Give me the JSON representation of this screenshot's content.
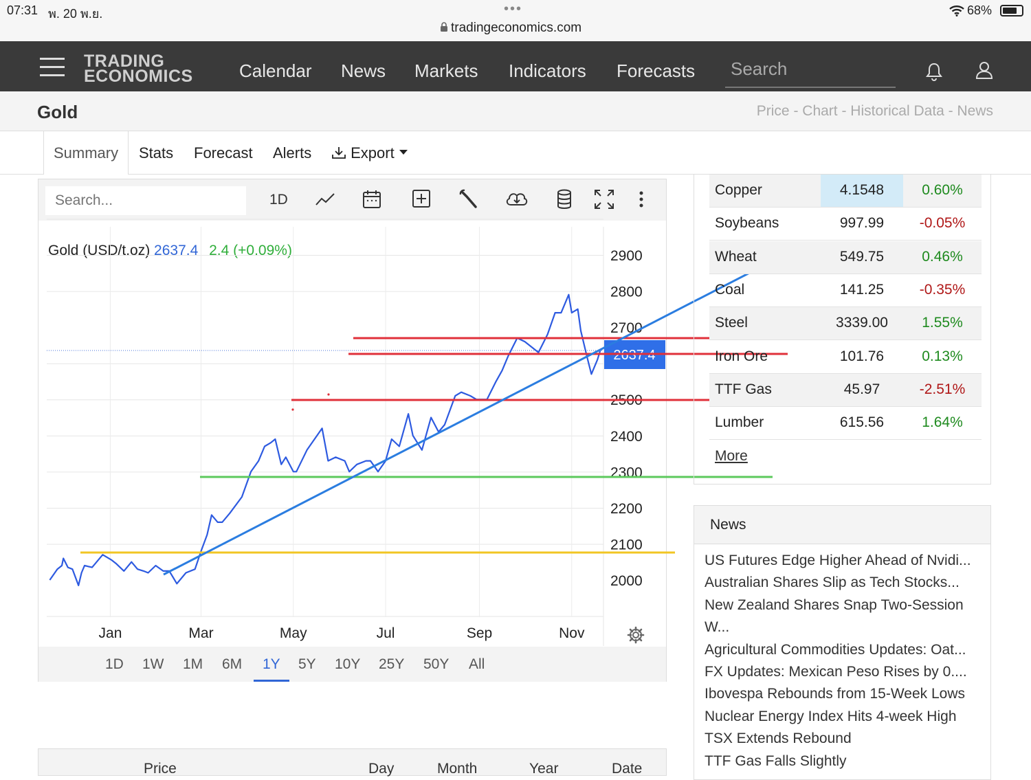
{
  "status_bar": {
    "time": "07:31",
    "date": "พ. 20 พ.ย.",
    "url": "tradingeconomics.com",
    "battery": "68%"
  },
  "nav": {
    "logo_line1": "TRADING",
    "logo_line2": "ECONOMICS",
    "links": [
      "Calendar",
      "News",
      "Markets",
      "Indicators",
      "Forecasts"
    ],
    "search_placeholder": "Search"
  },
  "page": {
    "title": "Gold",
    "breadcrumbs": "Price - Chart - Historical Data - News"
  },
  "tabs": [
    "Summary",
    "Stats",
    "Forecast",
    "Alerts",
    "Export"
  ],
  "active_tab": "Summary",
  "chart_toolbar": {
    "search_placeholder": "Search...",
    "interval": "1D",
    "icons": [
      "line-chart-icon",
      "calendar-icon",
      "add-box-icon",
      "wrench-icon",
      "cloud-download-icon",
      "database-icon",
      "fullscreen-icon",
      "more-vertical-icon"
    ]
  },
  "chart_data": {
    "type": "line",
    "legend_name": "Gold (USD/t.oz)",
    "legend_value": "2637.4",
    "legend_change": "2.4 (+0.09%)",
    "last_price_label": "2637.4",
    "x_ticks": [
      "Jan",
      "Mar",
      "May",
      "Jul",
      "Sep",
      "Nov"
    ],
    "y_ticks": [
      "2900",
      "2800",
      "2700",
      "2500",
      "2400",
      "2300",
      "2200",
      "2100",
      "2000"
    ],
    "y_range": [
      1930,
      2960
    ],
    "series": [
      {
        "name": "Gold (USD/t.oz)",
        "color": "#2d5ae0",
        "points": [
          [
            "2023-11-22",
            2000
          ],
          [
            "2023-11-27",
            2030
          ],
          [
            "2023-11-30",
            2040
          ],
          [
            "2023-12-01",
            2060
          ],
          [
            "2023-12-04",
            2035
          ],
          [
            "2023-12-07",
            2030
          ],
          [
            "2023-12-11",
            1985
          ],
          [
            "2023-12-13",
            2020
          ],
          [
            "2023-12-15",
            2040
          ],
          [
            "2023-12-20",
            2035
          ],
          [
            "2023-12-27",
            2070
          ],
          [
            "2024-01-02",
            2055
          ],
          [
            "2024-01-05",
            2045
          ],
          [
            "2024-01-10",
            2025
          ],
          [
            "2024-01-15",
            2050
          ],
          [
            "2024-01-19",
            2030
          ],
          [
            "2024-01-23",
            2025
          ],
          [
            "2024-01-26",
            2020
          ],
          [
            "2024-01-31",
            2040
          ],
          [
            "2024-02-05",
            2025
          ],
          [
            "2024-02-09",
            2025
          ],
          [
            "2024-02-14",
            1990
          ],
          [
            "2024-02-20",
            2020
          ],
          [
            "2024-02-26",
            2030
          ],
          [
            "2024-03-01",
            2080
          ],
          [
            "2024-03-05",
            2125
          ],
          [
            "2024-03-08",
            2180
          ],
          [
            "2024-03-12",
            2160
          ],
          [
            "2024-03-15",
            2160
          ],
          [
            "2024-03-20",
            2185
          ],
          [
            "2024-03-28",
            2230
          ],
          [
            "2024-04-03",
            2300
          ],
          [
            "2024-04-08",
            2330
          ],
          [
            "2024-04-12",
            2370
          ],
          [
            "2024-04-16",
            2380
          ],
          [
            "2024-04-19",
            2390
          ],
          [
            "2024-04-23",
            2320
          ],
          [
            "2024-04-26",
            2340
          ],
          [
            "2024-05-01",
            2300
          ],
          [
            "2024-05-03",
            2300
          ],
          [
            "2024-05-10",
            2360
          ],
          [
            "2024-05-15",
            2390
          ],
          [
            "2024-05-20",
            2420
          ],
          [
            "2024-05-24",
            2330
          ],
          [
            "2024-05-29",
            2340
          ],
          [
            "2024-06-04",
            2330
          ],
          [
            "2024-06-07",
            2300
          ],
          [
            "2024-06-12",
            2320
          ],
          [
            "2024-06-18",
            2330
          ],
          [
            "2024-06-21",
            2330
          ],
          [
            "2024-06-26",
            2300
          ],
          [
            "2024-07-01",
            2330
          ],
          [
            "2024-07-05",
            2390
          ],
          [
            "2024-07-10",
            2370
          ],
          [
            "2024-07-16",
            2460
          ],
          [
            "2024-07-19",
            2400
          ],
          [
            "2024-07-25",
            2360
          ],
          [
            "2024-07-31",
            2450
          ],
          [
            "2024-08-05",
            2410
          ],
          [
            "2024-08-09",
            2430
          ],
          [
            "2024-08-16",
            2510
          ],
          [
            "2024-08-20",
            2520
          ],
          [
            "2024-08-26",
            2510
          ],
          [
            "2024-08-30",
            2500
          ],
          [
            "2024-09-06",
            2500
          ],
          [
            "2024-09-12",
            2550
          ],
          [
            "2024-09-16",
            2580
          ],
          [
            "2024-09-20",
            2620
          ],
          [
            "2024-09-26",
            2670
          ],
          [
            "2024-10-01",
            2660
          ],
          [
            "2024-10-07",
            2640
          ],
          [
            "2024-10-10",
            2630
          ],
          [
            "2024-10-16",
            2680
          ],
          [
            "2024-10-21",
            2740
          ],
          [
            "2024-10-25",
            2740
          ],
          [
            "2024-10-30",
            2790
          ],
          [
            "2024-11-01",
            2740
          ],
          [
            "2024-11-05",
            2750
          ],
          [
            "2024-11-07",
            2690
          ],
          [
            "2024-11-11",
            2620
          ],
          [
            "2024-11-14",
            2570
          ],
          [
            "2024-11-18",
            2610
          ],
          [
            "2024-11-20",
            2637.4
          ]
        ]
      }
    ]
  },
  "range_buttons": [
    "1D",
    "1W",
    "1M",
    "6M",
    "1Y",
    "5Y",
    "10Y",
    "25Y",
    "50Y",
    "All"
  ],
  "active_range": "1Y",
  "commodities": [
    {
      "name": "Copper",
      "price": "4.1548",
      "change": "0.60%",
      "dir": "pos"
    },
    {
      "name": "Soybeans",
      "price": "997.99",
      "change": "-0.05%",
      "dir": "neg"
    },
    {
      "name": "Wheat",
      "price": "549.75",
      "change": "0.46%",
      "dir": "pos"
    },
    {
      "name": "Coal",
      "price": "141.25",
      "change": "-0.35%",
      "dir": "neg"
    },
    {
      "name": "Steel",
      "price": "3339.00",
      "change": "1.55%",
      "dir": "pos"
    },
    {
      "name": "Iron Ore",
      "price": "101.76",
      "change": "0.13%",
      "dir": "pos"
    },
    {
      "name": "TTF Gas",
      "price": "45.97",
      "change": "-2.51%",
      "dir": "neg"
    },
    {
      "name": "Lumber",
      "price": "615.56",
      "change": "1.64%",
      "dir": "pos"
    }
  ],
  "commodities_more": "More",
  "news": {
    "header": "News",
    "items": [
      "US Futures Edge Higher Ahead of Nvidi...",
      "Australian Shares Slip as Tech Stocks...",
      "New Zealand Shares Snap Two-Session",
      "W...",
      "Agricultural Commodities Updates: Oat...",
      "FX Updates: Mexican Peso Rises by 0....",
      "Ibovespa Rebounds from 15-Week Lows",
      "Nuclear Energy Index Hits 4-week High",
      "TSX Extends Rebound",
      "TTF Gas Falls Slightly"
    ]
  },
  "price_table_headers": [
    "Price",
    "Day",
    "Month",
    "Year",
    "Date"
  ],
  "colors": {
    "nav_bg": "#3a3a3a",
    "accent": "#3166d6",
    "positive": "#1e8a1e",
    "negative": "#b01818",
    "drawing_red": "#e0303a",
    "drawing_green": "#5cc95c",
    "drawing_yellow": "#f2c623",
    "drawing_blue": "#2b7de0"
  }
}
